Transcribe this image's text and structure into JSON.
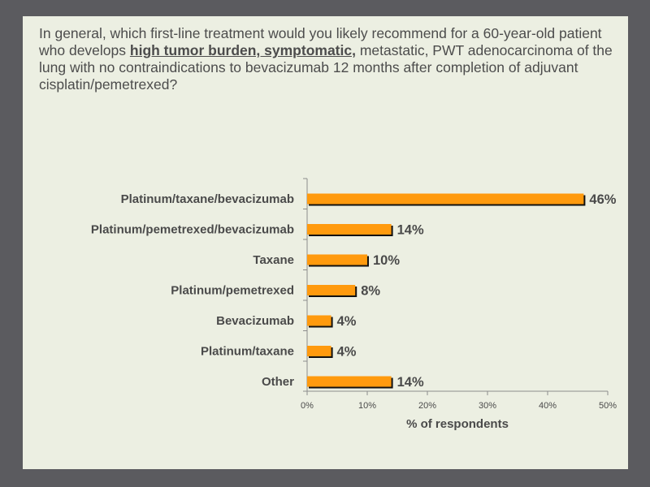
{
  "question": {
    "part1": "In general, which first-line treatment would you likely recommend for a 60-year-old patient who develops ",
    "emphasis": "high tumor burden, symptomatic,",
    "part2": " metastatic, PWT adenocarcinoma of the lung with no contraindications to bevacizumab 12 months after completion of adjuvant cisplatin/pemetrexed?"
  },
  "chart_data": {
    "type": "bar",
    "orientation": "horizontal",
    "categories": [
      "Platinum/taxane/bevacizumab",
      "Platinum/pemetrexed/bevacizumab",
      "Taxane",
      "Platinum/pemetrexed",
      "Bevacizumab",
      "Platinum/taxane",
      "Other"
    ],
    "values": [
      46,
      14,
      10,
      8,
      4,
      4,
      14
    ],
    "value_labels": [
      "46%",
      "14%",
      "10%",
      "8%",
      "4%",
      "4%",
      "14%"
    ],
    "xlabel": "% of respondents",
    "xlim": [
      0,
      50
    ],
    "x_ticks": [
      0,
      10,
      20,
      30,
      40,
      50
    ],
    "x_tick_labels": [
      "0%",
      "10%",
      "20%",
      "30%",
      "40%",
      "50%"
    ],
    "grid": false,
    "legend": "none",
    "bar_color": "#ff9a0e",
    "bar_shadow_color": "#111111"
  },
  "colors": {
    "frame": "#5b5b5f",
    "slide_background": "#ecefe2",
    "text": "#4a4a4a"
  }
}
